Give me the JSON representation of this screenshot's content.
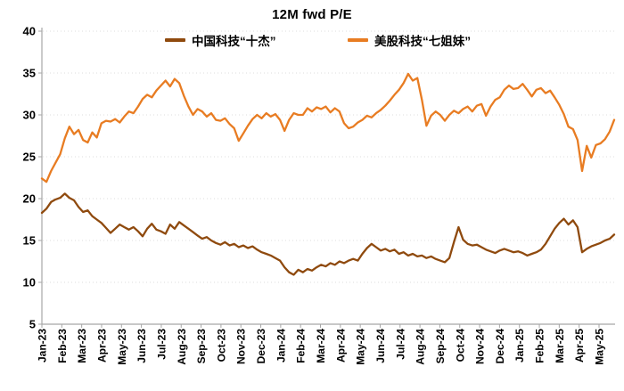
{
  "chart_data": {
    "type": "line",
    "title": "12M fwd P/E",
    "legend_position": "top",
    "grid": "faint dotted horizontal gridlines",
    "colors": {
      "china": "#8F4A0E",
      "us": "#E87C22",
      "axis": "#A6A6A6",
      "text": "#000000"
    },
    "y_axis": {
      "ticks": [
        5,
        10,
        15,
        20,
        25,
        30,
        35,
        40
      ],
      "ylim": [
        5,
        40
      ]
    },
    "x_axis": {
      "tick_labels": [
        "Jan-23",
        "Feb-23",
        "Mar-23",
        "Apr-23",
        "May-23",
        "Jun-23",
        "Jul-23",
        "Aug-23",
        "Sep-23",
        "Oct-23",
        "Nov-23",
        "Dec-23",
        "Jan-24",
        "Feb-24",
        "Mar-24",
        "Apr-24",
        "May-24",
        "Jun-24",
        "Jul-24",
        "Aug-24",
        "Sep-24",
        "Oct-24",
        "Nov-24",
        "Dec-24",
        "Jan-25",
        "Feb-25",
        "Mar-25",
        "Apr-25",
        "May-25"
      ]
    },
    "sampling": "weekly",
    "series": [
      {
        "name": "中国科技“十杰”",
        "color": "#8F4A0E",
        "values": [
          18.3,
          18.8,
          19.6,
          19.9,
          20.1,
          20.6,
          20.1,
          19.8,
          19.0,
          18.4,
          18.6,
          17.9,
          17.5,
          17.1,
          16.5,
          15.9,
          16.4,
          16.9,
          16.6,
          16.3,
          16.6,
          16.1,
          15.5,
          16.4,
          17.0,
          16.3,
          16.1,
          15.8,
          16.9,
          16.4,
          17.2,
          16.8,
          16.4,
          16.0,
          15.6,
          15.2,
          15.4,
          15.0,
          14.7,
          14.5,
          14.8,
          14.4,
          14.6,
          14.2,
          14.4,
          14.1,
          14.3,
          13.9,
          13.6,
          13.4,
          13.2,
          12.9,
          12.6,
          11.8,
          11.2,
          10.9,
          11.5,
          11.2,
          11.6,
          11.4,
          11.8,
          12.1,
          11.9,
          12.3,
          12.1,
          12.5,
          12.3,
          12.6,
          12.8,
          12.6,
          13.4,
          14.1,
          14.6,
          14.2,
          13.8,
          14.0,
          13.7,
          13.9,
          13.4,
          13.6,
          13.2,
          13.4,
          13.1,
          13.2,
          12.9,
          13.1,
          12.8,
          12.6,
          12.4,
          12.9,
          14.8,
          16.6,
          15.1,
          14.6,
          14.4,
          14.5,
          14.2,
          13.9,
          13.7,
          13.5,
          13.8,
          14.0,
          13.8,
          13.6,
          13.7,
          13.5,
          13.2,
          13.4,
          13.6,
          13.9,
          14.6,
          15.5,
          16.4,
          17.1,
          17.6,
          16.9,
          17.4,
          16.6,
          13.6,
          14.0,
          14.3,
          14.5,
          14.7,
          15.0,
          15.2,
          15.7
        ]
      },
      {
        "name": "美股科技“七姐妹”",
        "color": "#E87C22",
        "values": [
          22.4,
          22.0,
          23.3,
          24.3,
          25.3,
          27.2,
          28.6,
          27.7,
          28.2,
          27.0,
          26.7,
          27.9,
          27.3,
          29.0,
          29.3,
          29.2,
          29.5,
          29.1,
          29.8,
          30.4,
          30.2,
          31.0,
          31.9,
          32.4,
          32.1,
          32.9,
          33.5,
          34.1,
          33.4,
          34.3,
          33.8,
          32.3,
          31.0,
          30.0,
          30.7,
          30.4,
          29.8,
          30.2,
          29.4,
          29.3,
          29.6,
          28.9,
          28.4,
          26.9,
          27.8,
          28.7,
          29.5,
          30.0,
          29.6,
          30.2,
          29.8,
          30.1,
          29.4,
          28.1,
          29.4,
          30.2,
          30.0,
          30.0,
          30.8,
          30.4,
          30.9,
          30.7,
          31.0,
          30.3,
          30.8,
          30.4,
          29.0,
          28.4,
          28.6,
          29.1,
          29.4,
          29.9,
          29.7,
          30.2,
          30.6,
          31.1,
          31.7,
          32.4,
          33.0,
          33.8,
          34.9,
          34.1,
          34.4,
          31.8,
          28.7,
          29.9,
          30.4,
          30.0,
          29.3,
          30.0,
          30.5,
          30.2,
          30.7,
          31.0,
          30.4,
          31.1,
          31.3,
          29.9,
          31.0,
          31.8,
          32.1,
          33.0,
          33.5,
          33.1,
          33.2,
          33.7,
          33.0,
          32.2,
          33.0,
          33.2,
          32.6,
          32.9,
          32.1,
          31.2,
          30.1,
          28.6,
          28.3,
          27.0,
          23.3,
          26.3,
          24.9,
          26.4,
          26.6,
          27.1,
          28.0,
          29.4
        ]
      }
    ]
  }
}
